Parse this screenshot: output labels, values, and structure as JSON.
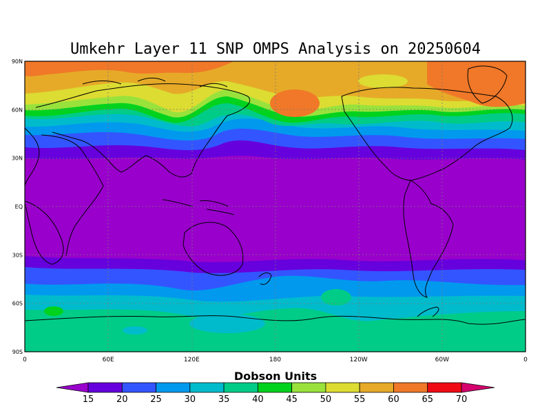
{
  "title": "Umkehr Layer 11 SNP OMPS Analysis on 20250604",
  "map": {
    "lat_labels": [
      "90N",
      "60N",
      "30N",
      "EQ",
      "30S",
      "60S",
      "90S"
    ],
    "lon_labels": [
      "0",
      "60E",
      "120E",
      "180",
      "120W",
      "60W",
      "0"
    ],
    "projection": "cylindrical equidistant",
    "grid": true
  },
  "colorbar": {
    "title": "Dobson Units",
    "levels": [
      "15",
      "20",
      "25",
      "30",
      "35",
      "40",
      "45",
      "50",
      "55",
      "60",
      "65",
      "70"
    ],
    "colors": [
      "#9900cc",
      "#6600dd",
      "#3355ff",
      "#0099ee",
      "#00bbcc",
      "#00cc88",
      "#00d21e",
      "#99e23c",
      "#dcdc32",
      "#e6aa28",
      "#f07828",
      "#f00a14",
      "#d6006e",
      "#cc00cc"
    ]
  },
  "chart_data": {
    "type": "heatmap",
    "title": "Umkehr Layer 11 SNP OMPS Analysis on 20250604",
    "variable": "Dobson Units",
    "x_range": [
      0,
      360
    ],
    "y_range": [
      -90,
      90
    ],
    "latitude_profile": [
      {
        "lat": 90,
        "value": 62
      },
      {
        "lat": 80,
        "value": 61
      },
      {
        "lat": 70,
        "value": 57
      },
      {
        "lat": 65,
        "value": 52
      },
      {
        "lat": 55,
        "value": 45
      },
      {
        "lat": 50,
        "value": 36
      },
      {
        "lat": 45,
        "value": 27
      },
      {
        "lat": 40,
        "value": 21
      },
      {
        "lat": 30,
        "value": 15
      },
      {
        "lat": 0,
        "value": 14
      },
      {
        "lat": -30,
        "value": 15
      },
      {
        "lat": -35,
        "value": 17
      },
      {
        "lat": -45,
        "value": 23
      },
      {
        "lat": -55,
        "value": 32
      },
      {
        "lat": -65,
        "value": 37
      },
      {
        "lat": -90,
        "value": 38
      }
    ]
  }
}
